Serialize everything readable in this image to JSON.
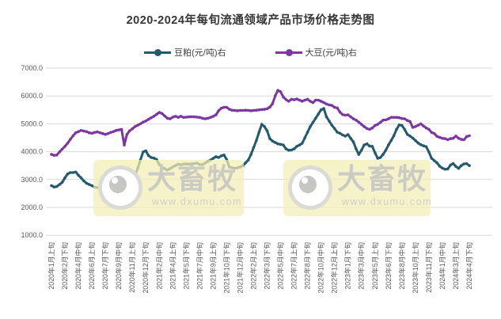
{
  "title": "2020-2024年每旬流通领域产品市场价格走势图",
  "watermark": {
    "brand": "大畜牧",
    "url": "www.dxumu.com"
  },
  "chart_data": {
    "type": "line",
    "title": "2020-2024年每旬流通领域产品市场价格走势图",
    "xlabel": "",
    "ylabel": "",
    "ylim": [
      1000,
      7000
    ],
    "grid": "horizontal",
    "legend_position": "top",
    "y_tick_labels": [
      "7000.0",
      "6000.0",
      "5000.0",
      "4000.0",
      "3000.0",
      "2000.0",
      "1000.0"
    ],
    "x_tick_every": 5,
    "x_tick_labels": [
      "2020年1月上旬",
      "2020年2月下旬",
      "2020年4月中旬",
      "2020年6月上旬",
      "2020年7月下旬",
      "2020年9月中旬",
      "2020年11月上旬",
      "2020年12月下旬",
      "2021年2月中旬",
      "2021年4月上旬",
      "2021年5月下旬",
      "2021年7月中旬",
      "2021年9月上旬",
      "2021年10月下旬",
      "2021年12月中旬",
      "2022年2月上旬",
      "2022年3月下旬",
      "2022年5月中旬",
      "2022年7月上旬",
      "2022年8月下旬",
      "2022年10月中旬",
      "2022年12月上旬",
      "2023年1月下旬",
      "2023年3月中旬",
      "2023年5月上旬",
      "2023年6月下旬",
      "2023年8月中旬",
      "2023年10月上旬",
      "2023年11月下旬",
      "2024年1月中旬",
      "2024年3月上旬",
      "2024年4月下旬"
    ],
    "series": [
      {
        "name": "豆粕(元/吨)右",
        "color": "#255a6d",
        "values": [
          2780,
          2730,
          2750,
          2820,
          2900,
          3060,
          3200,
          3250,
          3250,
          3270,
          3150,
          3060,
          2950,
          2870,
          2820,
          2780,
          2730,
          2710,
          2700,
          2720,
          2745,
          2720,
          2680,
          2700,
          2710,
          2730,
          2745,
          2780,
          2820,
          2870,
          2950,
          3150,
          3400,
          3700,
          3990,
          4030,
          3860,
          3790,
          3770,
          3720,
          3540,
          3430,
          3390,
          3340,
          3390,
          3450,
          3500,
          3550,
          3530,
          3550,
          3560,
          3555,
          3560,
          3570,
          3590,
          3540,
          3530,
          3590,
          3650,
          3700,
          3760,
          3820,
          3790,
          3850,
          3880,
          3720,
          3450,
          3420,
          3400,
          3420,
          3450,
          3500,
          3600,
          3700,
          3900,
          4150,
          4400,
          4700,
          4980,
          4900,
          4750,
          4470,
          4380,
          4330,
          4280,
          4260,
          4240,
          4100,
          4050,
          4060,
          4100,
          4190,
          4240,
          4300,
          4500,
          4700,
          4900,
          5050,
          5200,
          5350,
          5500,
          5550,
          5250,
          5100,
          4950,
          4830,
          4700,
          4660,
          4600,
          4560,
          4610,
          4480,
          4350,
          4100,
          3900,
          4050,
          4240,
          4280,
          4200,
          4190,
          3960,
          3760,
          3790,
          3900,
          4050,
          4240,
          4400,
          4570,
          4800,
          4960,
          4940,
          4800,
          4620,
          4560,
          4490,
          4400,
          4310,
          4250,
          4210,
          4180,
          3990,
          3760,
          3680,
          3600,
          3480,
          3410,
          3370,
          3380,
          3520,
          3570,
          3470,
          3400,
          3500,
          3560,
          3570,
          3500
        ]
      },
      {
        "name": "大豆(元/吨)右",
        "color": "#7a38a0",
        "values": [
          3900,
          3870,
          3880,
          3990,
          4090,
          4190,
          4300,
          4440,
          4570,
          4680,
          4720,
          4760,
          4740,
          4720,
          4680,
          4660,
          4690,
          4710,
          4680,
          4650,
          4620,
          4650,
          4690,
          4720,
          4760,
          4780,
          4800,
          4240,
          4620,
          4750,
          4820,
          4900,
          4950,
          5000,
          5060,
          5100,
          5160,
          5220,
          5270,
          5340,
          5410,
          5370,
          5280,
          5200,
          5180,
          5240,
          5270,
          5230,
          5270,
          5230,
          5240,
          5250,
          5250,
          5250,
          5240,
          5230,
          5200,
          5180,
          5200,
          5230,
          5270,
          5320,
          5470,
          5560,
          5590,
          5590,
          5520,
          5490,
          5480,
          5470,
          5480,
          5480,
          5490,
          5480,
          5470,
          5480,
          5490,
          5500,
          5510,
          5520,
          5540,
          5600,
          5720,
          6000,
          6200,
          6150,
          5960,
          5870,
          5810,
          5880,
          5860,
          5890,
          5850,
          5810,
          5850,
          5880,
          5810,
          5760,
          5850,
          5850,
          5810,
          5760,
          5710,
          5680,
          5660,
          5590,
          5570,
          5420,
          5330,
          5310,
          5320,
          5250,
          5180,
          5130,
          5060,
          4980,
          4900,
          4830,
          4800,
          4850,
          4940,
          4980,
          5050,
          5130,
          5140,
          5180,
          5230,
          5230,
          5230,
          5220,
          5190,
          5180,
          5120,
          5080,
          4870,
          4900,
          4950,
          5000,
          4920,
          4850,
          4800,
          4690,
          4650,
          4550,
          4510,
          4480,
          4470,
          4430,
          4470,
          4480,
          4560,
          4480,
          4440,
          4430,
          4540,
          4570
        ]
      }
    ]
  }
}
